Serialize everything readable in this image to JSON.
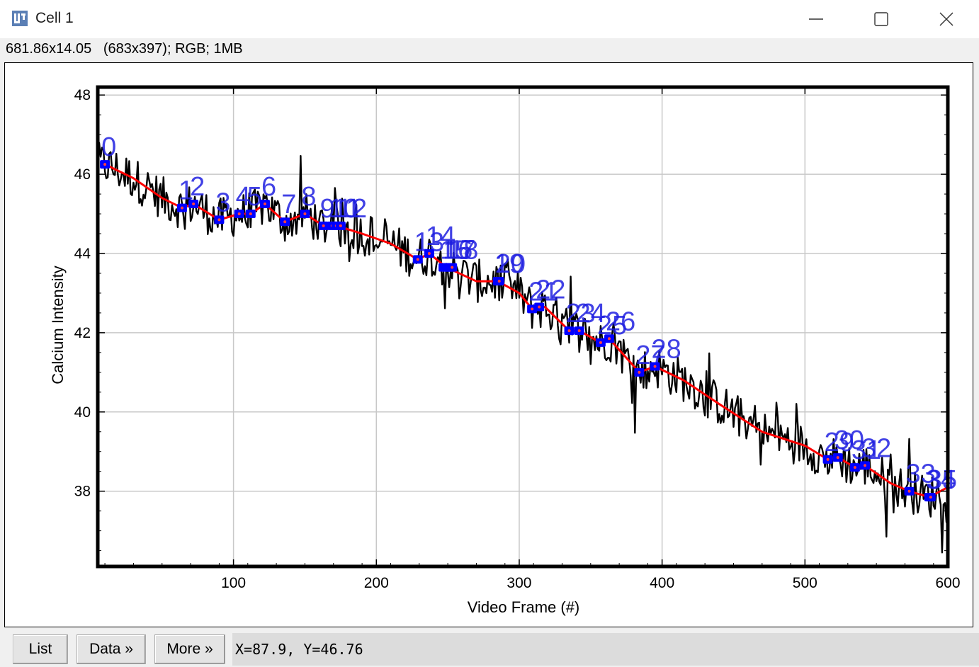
{
  "window": {
    "title": "Cell 1",
    "info_line": "681.86x14.05   (683x397); RGB; 1MB",
    "app_icon": "imagej-icon",
    "controls": [
      "minimize-icon",
      "maximize-icon",
      "close-icon"
    ]
  },
  "buttons": {
    "list_label": "List",
    "data_label": "Data »",
    "more_label": "More »"
  },
  "status": {
    "readout": "X=87.9, Y=46.76"
  },
  "colors": {
    "raw_trace": "#000000",
    "smoothed_trace": "#ff0000",
    "markers": "#0000ff",
    "marker_labels": "#2020e0",
    "grid": "#c8c8c8"
  },
  "chart_data": {
    "type": "line",
    "title": "",
    "xlabel": "Video Frame (#)",
    "ylabel": "Calcium Intensity",
    "xlim": [
      5,
      600
    ],
    "ylim": [
      36.1,
      48.2
    ],
    "x_ticks": [
      100,
      200,
      300,
      400,
      500,
      600
    ],
    "y_ticks": [
      38,
      40,
      42,
      44,
      46,
      48
    ],
    "grid": true,
    "legend": "none",
    "series": [
      {
        "role": "raw",
        "x_range": [
          5,
          600
        ],
        "noise_amplitude": 0.55
      },
      {
        "role": "smoothed",
        "x": [
          10,
          30,
          50,
          64,
          72,
          90,
          104,
          112,
          122,
          136,
          150,
          163,
          172,
          190,
          210,
          229,
          237,
          249,
          270,
          285,
          300,
          309,
          318,
          335,
          342,
          357,
          363,
          384,
          395,
          415,
          440,
          470,
          500,
          516,
          523,
          535,
          542,
          560,
          573,
          587,
          600
        ],
        "y": [
          46.25,
          45.9,
          45.4,
          45.15,
          45.25,
          44.85,
          45.0,
          45.0,
          45.25,
          44.8,
          45.0,
          44.7,
          44.7,
          44.5,
          44.25,
          43.85,
          44.0,
          43.65,
          43.3,
          43.3,
          43.0,
          42.6,
          42.65,
          42.05,
          42.05,
          41.75,
          41.85,
          41.0,
          41.15,
          40.8,
          40.2,
          39.5,
          39.15,
          38.8,
          38.85,
          38.6,
          38.65,
          38.2,
          38.0,
          37.85,
          38.1
        ]
      }
    ],
    "markers": [
      {
        "label": "0",
        "x": 10,
        "y": 46.25
      },
      {
        "label": "1",
        "x": 64,
        "y": 45.15
      },
      {
        "label": "2",
        "x": 72,
        "y": 45.25
      },
      {
        "label": "3",
        "x": 90,
        "y": 44.85
      },
      {
        "label": "4",
        "x": 104,
        "y": 45.0
      },
      {
        "label": "5",
        "x": 112,
        "y": 45.0
      },
      {
        "label": "6",
        "x": 122,
        "y": 45.25
      },
      {
        "label": "7",
        "x": 136,
        "y": 44.8
      },
      {
        "label": "8",
        "x": 150,
        "y": 45.0
      },
      {
        "label": "9",
        "x": 163,
        "y": 44.7
      },
      {
        "label": "10",
        "x": 169,
        "y": 44.7
      },
      {
        "label": "11",
        "x": 172,
        "y": 44.7
      },
      {
        "label": "12",
        "x": 175,
        "y": 44.7
      },
      {
        "label": "13",
        "x": 229,
        "y": 43.85
      },
      {
        "label": "14",
        "x": 237,
        "y": 44.0
      },
      {
        "label": "15",
        "x": 247,
        "y": 43.65
      },
      {
        "label": "16",
        "x": 249,
        "y": 43.65
      },
      {
        "label": "17",
        "x": 251,
        "y": 43.65
      },
      {
        "label": "18",
        "x": 253,
        "y": 43.65
      },
      {
        "label": "19",
        "x": 285,
        "y": 43.3
      },
      {
        "label": "20",
        "x": 286,
        "y": 43.3
      },
      {
        "label": "21",
        "x": 309,
        "y": 42.6
      },
      {
        "label": "22",
        "x": 314,
        "y": 42.65
      },
      {
        "label": "23",
        "x": 335,
        "y": 42.05
      },
      {
        "label": "24",
        "x": 342,
        "y": 42.05
      },
      {
        "label": "25",
        "x": 357,
        "y": 41.75
      },
      {
        "label": "26",
        "x": 363,
        "y": 41.85
      },
      {
        "label": "27",
        "x": 384,
        "y": 41.0
      },
      {
        "label": "28",
        "x": 395,
        "y": 41.15
      },
      {
        "label": "29",
        "x": 516,
        "y": 38.8
      },
      {
        "label": "30",
        "x": 523,
        "y": 38.85
      },
      {
        "label": "31",
        "x": 535,
        "y": 38.6
      },
      {
        "label": "32",
        "x": 542,
        "y": 38.65
      },
      {
        "label": "33",
        "x": 573,
        "y": 38.0
      },
      {
        "label": "34",
        "x": 587,
        "y": 37.85
      },
      {
        "label": "35",
        "x": 588,
        "y": 37.85
      }
    ]
  }
}
